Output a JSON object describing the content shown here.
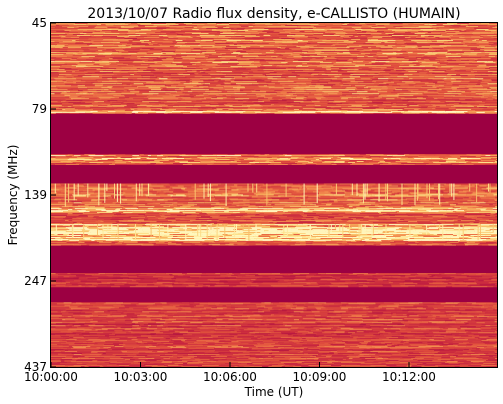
{
  "chart_data": {
    "type": "heatmap",
    "title": "2013/10/07  Radio flux density, e-CALLISTO (HUMAIN)",
    "xlabel": "Time (UT)",
    "ylabel": "Frequency (MHz)",
    "x_ticks": [
      "10:00:00",
      "10:03:00",
      "10:06:00",
      "10:09:00",
      "10:12:00"
    ],
    "y_ticks": [
      "45",
      "79",
      "139",
      "247",
      "437"
    ],
    "ylim_mhz": [
      437,
      45
    ],
    "colormap": [
      "#9c0042",
      "#c7253f",
      "#e04f3d",
      "#f07e4a",
      "#f7b25e",
      "#fde08a",
      "#fff7bd"
    ],
    "bands": [
      {
        "from": 45,
        "to": 73,
        "level": 0.45,
        "note": "noisy band"
      },
      {
        "from": 73,
        "to": 80,
        "level": 0.38,
        "note": "noisy band"
      },
      {
        "from": 80,
        "to": 82,
        "level": 0.7,
        "note": "bright line"
      },
      {
        "from": 82,
        "to": 107,
        "level": 0.0,
        "note": "blocked band"
      },
      {
        "from": 107,
        "to": 115,
        "level": 0.55,
        "note": "active band"
      },
      {
        "from": 115,
        "to": 130,
        "level": 0.0,
        "note": "blocked band"
      },
      {
        "from": 130,
        "to": 152,
        "level": 0.45,
        "note": "spiky band"
      },
      {
        "from": 152,
        "to": 158,
        "level": 0.85,
        "note": "bright line"
      },
      {
        "from": 158,
        "to": 170,
        "level": 0.35,
        "note": "noisy band"
      },
      {
        "from": 170,
        "to": 190,
        "level": 0.95,
        "note": "bright band"
      },
      {
        "from": 190,
        "to": 196,
        "level": 0.4,
        "note": "noisy band"
      },
      {
        "from": 196,
        "to": 235,
        "level": 0.0,
        "note": "blocked band"
      },
      {
        "from": 235,
        "to": 258,
        "level": 0.25,
        "note": "weak band"
      },
      {
        "from": 258,
        "to": 285,
        "level": 0.0,
        "note": "blocked band"
      },
      {
        "from": 285,
        "to": 437,
        "level": 0.3,
        "note": "noisy band"
      }
    ]
  }
}
